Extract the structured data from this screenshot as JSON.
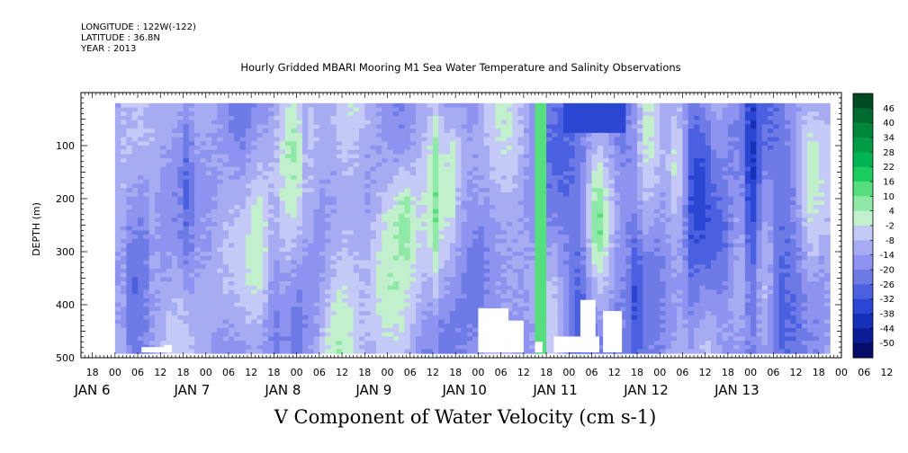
{
  "meta": {
    "longitude": "LONGITUDE : 122W(-122)",
    "latitude": "LATITUDE : 36.8N",
    "year": "YEAR : 2013"
  },
  "chart_data": {
    "type": "heatmap",
    "title": "Hourly Gridded MBARI Mooring M1 Sea Water Temperature and Salinity Observations",
    "variable_title": "V Component of Water Velocity (cm s-1)",
    "ylabel": "DEPTH (m)",
    "ylim": [
      500,
      0
    ],
    "yticks": [
      100,
      200,
      300,
      400,
      500
    ],
    "xlim_hours": [
      -9,
      192
    ],
    "x_hour_labels": [
      "18",
      "00",
      "06",
      "12",
      "18",
      "00",
      "06",
      "12",
      "18",
      "00",
      "06",
      "12",
      "18",
      "00",
      "06",
      "12",
      "18",
      "00",
      "06",
      "12",
      "18",
      "00",
      "06",
      "12",
      "18",
      "00",
      "06",
      "12",
      "18",
      "00",
      "06",
      "12",
      "18",
      "00",
      "06",
      "12"
    ],
    "x_day_labels": [
      "JAN  6",
      "JAN  7",
      "JAN  8",
      "JAN  9",
      "JAN 10",
      "JAN 11",
      "JAN 12",
      "JAN 13"
    ],
    "data_hour_range": [
      0,
      189
    ],
    "data_depth_range": [
      20,
      490
    ],
    "colorbar_levels": [
      46,
      40,
      34,
      28,
      22,
      16,
      10,
      4,
      -2,
      -8,
      -14,
      -20,
      -26,
      -32,
      -38,
      -44,
      -50
    ],
    "colorbar_colors": [
      "#004a22",
      "#006b2e",
      "#00863a",
      "#009d46",
      "#00b553",
      "#1ccc5e",
      "#55dd7e",
      "#8ee9a6",
      "#c2f0cc",
      "#c5c9f6",
      "#a7acf2",
      "#8d93ee",
      "#6e7ae6",
      "#4a60e0",
      "#2c46d4",
      "#1630b8",
      "#0b1c94",
      "#050c6a"
    ]
  }
}
